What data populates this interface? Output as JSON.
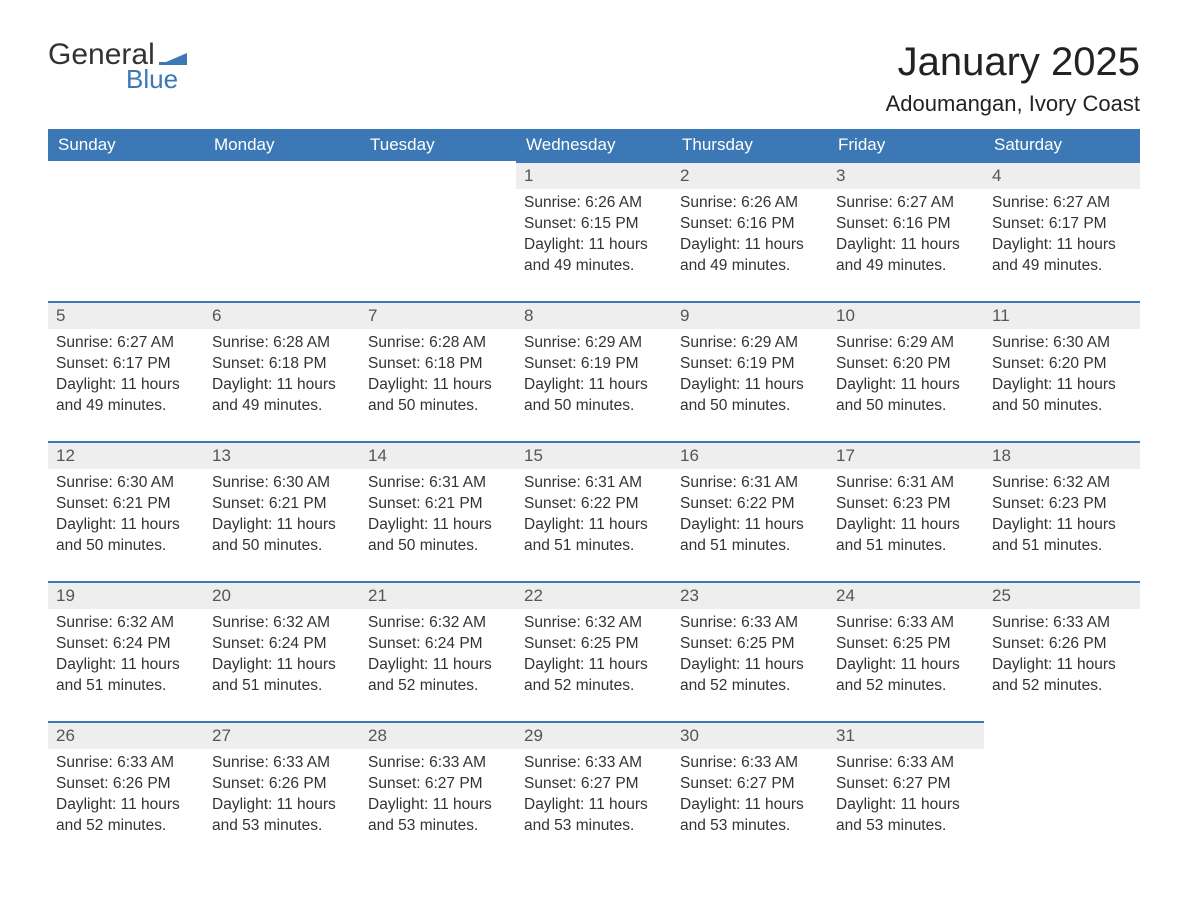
{
  "logo": {
    "text_general": "General",
    "text_blue": "Blue",
    "flag_color": "#3b78b5"
  },
  "header": {
    "month_title": "January 2025",
    "location": "Adoumangan, Ivory Coast"
  },
  "colors": {
    "header_bg": "#3b78b5",
    "header_text": "#ffffff",
    "daynum_bg": "#eeeeee",
    "daynum_border": "#3b78b5",
    "body_text": "#333333",
    "page_bg": "#ffffff"
  },
  "daysOfWeek": [
    "Sunday",
    "Monday",
    "Tuesday",
    "Wednesday",
    "Thursday",
    "Friday",
    "Saturday"
  ],
  "weeks": [
    [
      null,
      null,
      null,
      {
        "n": "1",
        "sunrise": "Sunrise: 6:26 AM",
        "sunset": "Sunset: 6:15 PM",
        "daylight": "Daylight: 11 hours and 49 minutes."
      },
      {
        "n": "2",
        "sunrise": "Sunrise: 6:26 AM",
        "sunset": "Sunset: 6:16 PM",
        "daylight": "Daylight: 11 hours and 49 minutes."
      },
      {
        "n": "3",
        "sunrise": "Sunrise: 6:27 AM",
        "sunset": "Sunset: 6:16 PM",
        "daylight": "Daylight: 11 hours and 49 minutes."
      },
      {
        "n": "4",
        "sunrise": "Sunrise: 6:27 AM",
        "sunset": "Sunset: 6:17 PM",
        "daylight": "Daylight: 11 hours and 49 minutes."
      }
    ],
    [
      {
        "n": "5",
        "sunrise": "Sunrise: 6:27 AM",
        "sunset": "Sunset: 6:17 PM",
        "daylight": "Daylight: 11 hours and 49 minutes."
      },
      {
        "n": "6",
        "sunrise": "Sunrise: 6:28 AM",
        "sunset": "Sunset: 6:18 PM",
        "daylight": "Daylight: 11 hours and 49 minutes."
      },
      {
        "n": "7",
        "sunrise": "Sunrise: 6:28 AM",
        "sunset": "Sunset: 6:18 PM",
        "daylight": "Daylight: 11 hours and 50 minutes."
      },
      {
        "n": "8",
        "sunrise": "Sunrise: 6:29 AM",
        "sunset": "Sunset: 6:19 PM",
        "daylight": "Daylight: 11 hours and 50 minutes."
      },
      {
        "n": "9",
        "sunrise": "Sunrise: 6:29 AM",
        "sunset": "Sunset: 6:19 PM",
        "daylight": "Daylight: 11 hours and 50 minutes."
      },
      {
        "n": "10",
        "sunrise": "Sunrise: 6:29 AM",
        "sunset": "Sunset: 6:20 PM",
        "daylight": "Daylight: 11 hours and 50 minutes."
      },
      {
        "n": "11",
        "sunrise": "Sunrise: 6:30 AM",
        "sunset": "Sunset: 6:20 PM",
        "daylight": "Daylight: 11 hours and 50 minutes."
      }
    ],
    [
      {
        "n": "12",
        "sunrise": "Sunrise: 6:30 AM",
        "sunset": "Sunset: 6:21 PM",
        "daylight": "Daylight: 11 hours and 50 minutes."
      },
      {
        "n": "13",
        "sunrise": "Sunrise: 6:30 AM",
        "sunset": "Sunset: 6:21 PM",
        "daylight": "Daylight: 11 hours and 50 minutes."
      },
      {
        "n": "14",
        "sunrise": "Sunrise: 6:31 AM",
        "sunset": "Sunset: 6:21 PM",
        "daylight": "Daylight: 11 hours and 50 minutes."
      },
      {
        "n": "15",
        "sunrise": "Sunrise: 6:31 AM",
        "sunset": "Sunset: 6:22 PM",
        "daylight": "Daylight: 11 hours and 51 minutes."
      },
      {
        "n": "16",
        "sunrise": "Sunrise: 6:31 AM",
        "sunset": "Sunset: 6:22 PM",
        "daylight": "Daylight: 11 hours and 51 minutes."
      },
      {
        "n": "17",
        "sunrise": "Sunrise: 6:31 AM",
        "sunset": "Sunset: 6:23 PM",
        "daylight": "Daylight: 11 hours and 51 minutes."
      },
      {
        "n": "18",
        "sunrise": "Sunrise: 6:32 AM",
        "sunset": "Sunset: 6:23 PM",
        "daylight": "Daylight: 11 hours and 51 minutes."
      }
    ],
    [
      {
        "n": "19",
        "sunrise": "Sunrise: 6:32 AM",
        "sunset": "Sunset: 6:24 PM",
        "daylight": "Daylight: 11 hours and 51 minutes."
      },
      {
        "n": "20",
        "sunrise": "Sunrise: 6:32 AM",
        "sunset": "Sunset: 6:24 PM",
        "daylight": "Daylight: 11 hours and 51 minutes."
      },
      {
        "n": "21",
        "sunrise": "Sunrise: 6:32 AM",
        "sunset": "Sunset: 6:24 PM",
        "daylight": "Daylight: 11 hours and 52 minutes."
      },
      {
        "n": "22",
        "sunrise": "Sunrise: 6:32 AM",
        "sunset": "Sunset: 6:25 PM",
        "daylight": "Daylight: 11 hours and 52 minutes."
      },
      {
        "n": "23",
        "sunrise": "Sunrise: 6:33 AM",
        "sunset": "Sunset: 6:25 PM",
        "daylight": "Daylight: 11 hours and 52 minutes."
      },
      {
        "n": "24",
        "sunrise": "Sunrise: 6:33 AM",
        "sunset": "Sunset: 6:25 PM",
        "daylight": "Daylight: 11 hours and 52 minutes."
      },
      {
        "n": "25",
        "sunrise": "Sunrise: 6:33 AM",
        "sunset": "Sunset: 6:26 PM",
        "daylight": "Daylight: 11 hours and 52 minutes."
      }
    ],
    [
      {
        "n": "26",
        "sunrise": "Sunrise: 6:33 AM",
        "sunset": "Sunset: 6:26 PM",
        "daylight": "Daylight: 11 hours and 52 minutes."
      },
      {
        "n": "27",
        "sunrise": "Sunrise: 6:33 AM",
        "sunset": "Sunset: 6:26 PM",
        "daylight": "Daylight: 11 hours and 53 minutes."
      },
      {
        "n": "28",
        "sunrise": "Sunrise: 6:33 AM",
        "sunset": "Sunset: 6:27 PM",
        "daylight": "Daylight: 11 hours and 53 minutes."
      },
      {
        "n": "29",
        "sunrise": "Sunrise: 6:33 AM",
        "sunset": "Sunset: 6:27 PM",
        "daylight": "Daylight: 11 hours and 53 minutes."
      },
      {
        "n": "30",
        "sunrise": "Sunrise: 6:33 AM",
        "sunset": "Sunset: 6:27 PM",
        "daylight": "Daylight: 11 hours and 53 minutes."
      },
      {
        "n": "31",
        "sunrise": "Sunrise: 6:33 AM",
        "sunset": "Sunset: 6:27 PM",
        "daylight": "Daylight: 11 hours and 53 minutes."
      },
      null
    ]
  ]
}
